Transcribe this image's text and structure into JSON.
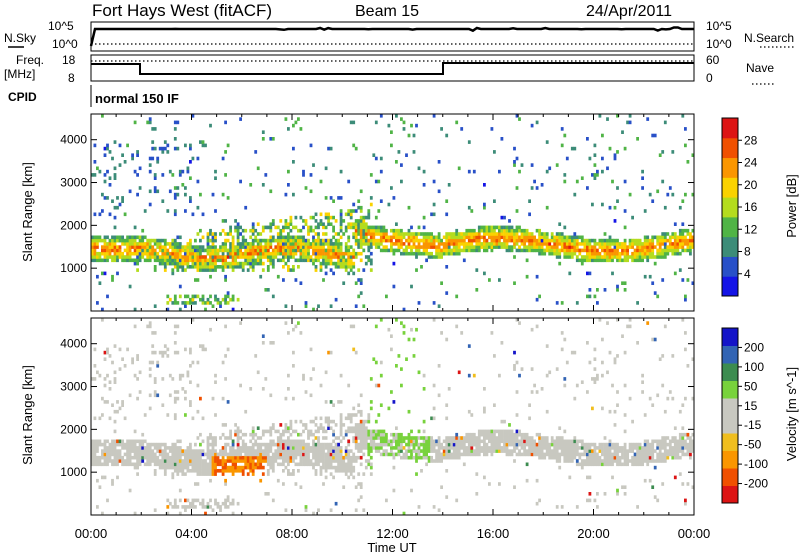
{
  "header": {
    "title": "Fort Hays West (fitACF)",
    "beam": "Beam 15",
    "date": "24/Apr/2011"
  },
  "top_panels": {
    "nsky_label": "N.Sky",
    "nsky_ticks": [
      "10^5",
      "10^0"
    ],
    "nsearch_label": "N.Search",
    "nsearch_ticks": [
      "10^5",
      "10^0"
    ],
    "freq_label": "Freq.",
    "freq_unit": "[MHz]",
    "freq_ticks": [
      "18",
      "8"
    ],
    "nave_label": "Nave",
    "nave_ticks": [
      "60",
      "0"
    ],
    "cpid_label": "CPID",
    "cpid_value": "normal 150 IF"
  },
  "colors": {
    "power_scale": [
      "#1414e6",
      "#2850c8",
      "#3c8c78",
      "#50b446",
      "#b4dc1e",
      "#fad200",
      "#fa9600",
      "#f05000",
      "#dc1414"
    ],
    "velocity_scale": [
      "#dc1414",
      "#f05000",
      "#fa9600",
      "#f0be1e",
      "#c8c8c0",
      "#c8c8c0",
      "#78d23c",
      "#3c8c50",
      "#3264b4",
      "#1414c8"
    ]
  },
  "chart_data": [
    {
      "type": "heatmap",
      "title": "",
      "xlabel": "",
      "ylabel": "Slant Range [km]",
      "xlim": [
        0,
        24
      ],
      "ylim": [
        0,
        4600
      ],
      "x_ticks": [
        "00:00",
        "04:00",
        "08:00",
        "12:00",
        "16:00",
        "20:00",
        "00:00"
      ],
      "y_ticks": [
        "1000",
        "2000",
        "3000",
        "4000"
      ],
      "colorbar": {
        "label": "Power [dB]",
        "ticks": [
          "28",
          "24",
          "20",
          "16",
          "12",
          "8",
          "4"
        ],
        "range": [
          0,
          30
        ]
      },
      "features": [
        {
          "name": "ground scatter band early",
          "x_range": [
            0,
            1.8
          ],
          "range_km": [
            1200,
            1800
          ],
          "power_db": 22
        },
        {
          "name": "sloping scatter",
          "x_range": [
            1.8,
            5.0
          ],
          "range_km": [
            1000,
            2000
          ],
          "power_db": 14
        },
        {
          "name": "morning scatter",
          "x_range": [
            5.0,
            11.2
          ],
          "range_km": [
            1000,
            2600
          ],
          "power_db": 12
        },
        {
          "name": "dusk ground scatter",
          "x_range": [
            10.5,
            14.0
          ],
          "range_km": [
            1100,
            2000
          ],
          "power_db": 20
        },
        {
          "name": "evening ground scatter",
          "x_range": [
            14.0,
            24.0
          ],
          "range_km": [
            1300,
            1900
          ],
          "power_db": 22
        },
        {
          "name": "near range echoes",
          "x_range": [
            3.0,
            6.0
          ],
          "range_km": [
            180,
            400
          ],
          "power_db": 10
        }
      ]
    },
    {
      "type": "heatmap",
      "title": "",
      "xlabel": "Time UT",
      "ylabel": "Slant Range [km]",
      "xlim": [
        0,
        24
      ],
      "ylim": [
        0,
        4600
      ],
      "x_ticks": [
        "00:00",
        "04:00",
        "08:00",
        "12:00",
        "16:00",
        "20:00",
        "00:00"
      ],
      "y_ticks": [
        "1000",
        "2000",
        "3000",
        "4000"
      ],
      "colorbar": {
        "label": "Velocity [m s^-1]",
        "ticks": [
          "200",
          "100",
          "50",
          "15",
          "-15",
          "-50",
          "-100",
          "-200"
        ],
        "range": [
          -250,
          250
        ]
      },
      "features": [
        {
          "name": "ground scatter (near-zero velocity)",
          "x_range": [
            0,
            24
          ],
          "range_km": [
            1100,
            2000
          ],
          "velocity": 0
        },
        {
          "name": "negative velocity patch",
          "x_range": [
            4.8,
            7.0
          ],
          "range_km": [
            800,
            1400
          ],
          "velocity": -70
        },
        {
          "name": "positive velocity streak",
          "x_range": [
            11.0,
            13.5
          ],
          "range_km": [
            1000,
            3800
          ],
          "velocity": 30
        }
      ]
    }
  ]
}
